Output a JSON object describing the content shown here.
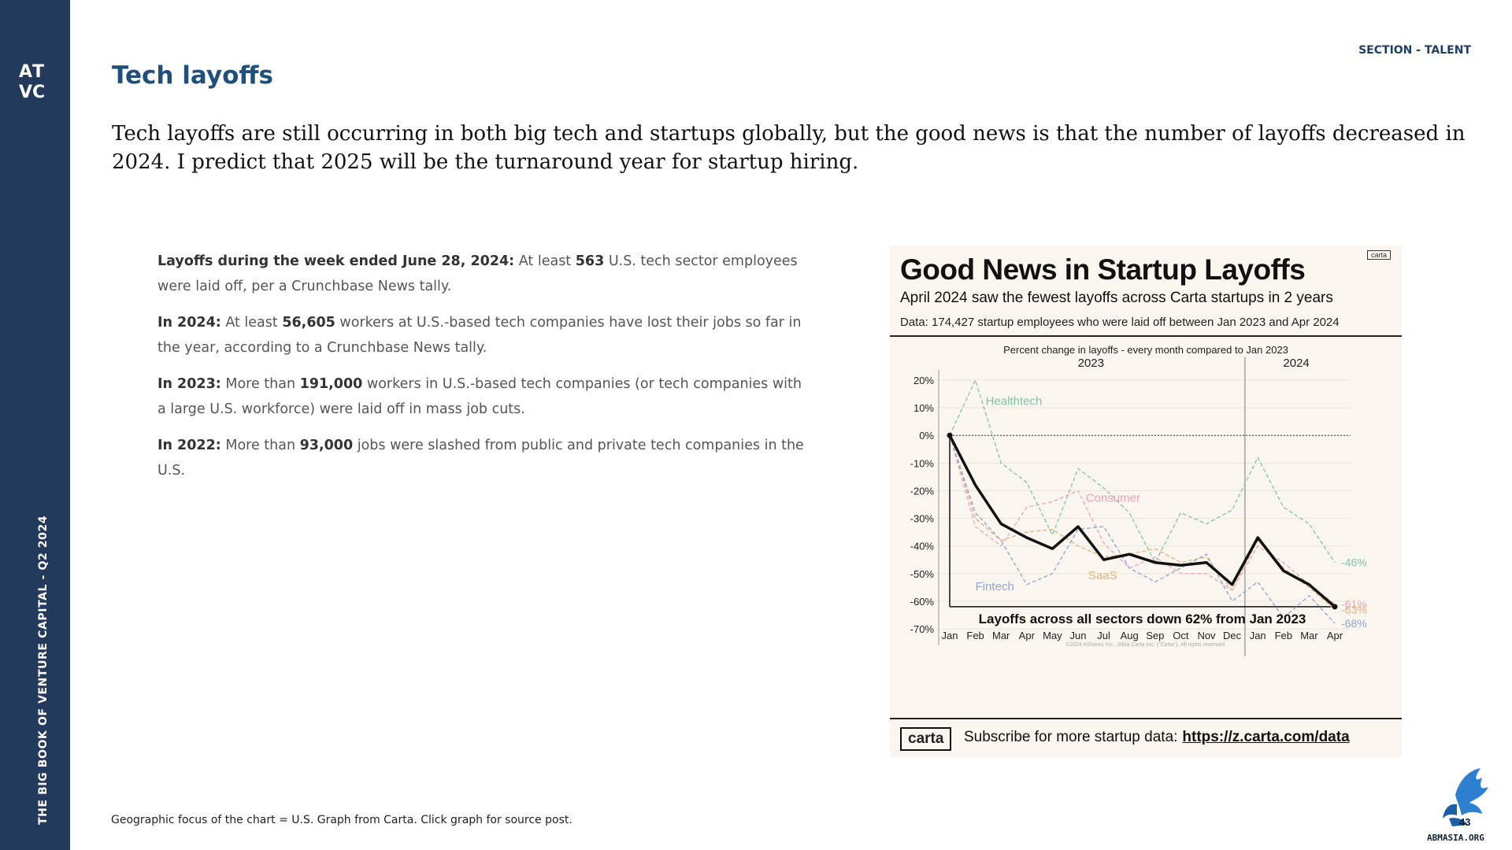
{
  "sidebar": {
    "logo_text": "ATVC",
    "vertical_label": "THE BIG BOOK OF VENTURE CAPITAL - Q2 2024"
  },
  "header": {
    "section": "SECTION - TALENT",
    "title": "Tech layoffs"
  },
  "intro": "Tech layoffs are still occurring in both big tech and startups globally, but the good news is that the number of layoffs decreased in 2024. I predict that 2025 will be the turnaround year for startup hiring.",
  "stats": [
    {
      "lead": "Layoffs during the week ended June 28, 2024:",
      "t1": " At least ",
      "num": "563",
      "t2": " U.S. tech sector employees were laid off, per a Crunchbase News tally."
    },
    {
      "lead": "In 2024:",
      "t1": " At least ",
      "num": "56,605",
      "t2": " workers at U.S.-based tech companies have lost their jobs so far in the year, according to a Crunchbase News tally."
    },
    {
      "lead": "In 2023:",
      "t1": " More than ",
      "num": "191,000",
      "t2": " workers in U.S.-based tech companies (or tech companies with a large U.S. workforce) were laid off in mass job cuts."
    },
    {
      "lead": "In 2022:",
      "t1": " More than ",
      "num": "93,000",
      "t2": " jobs were slashed from public and private tech companies in the U.S."
    }
  ],
  "card": {
    "title": "Good News in Startup Layoffs",
    "subtitle": "April 2024 saw the fewest layoffs across Carta startups in 2 years",
    "data_note": "Data: 174,427 startup employees who were laid off between Jan 2023 and Apr 2024",
    "badge": "carta",
    "footer_brand": "carta",
    "footer_text": "Subscribe for more startup data:",
    "footer_link": "https://z.carta.com/data"
  },
  "chart_data": {
    "type": "line",
    "title": "Percent change in layoffs - every month compared to Jan 2023",
    "annotation": "Layoffs across all sectors down 62% from Jan 2023",
    "copyright": "©2024 eShares Inc., d/b/a Carta Inc. (\"Carta\"). All rights reserved.",
    "x": [
      "Jan",
      "Feb",
      "Mar",
      "Apr",
      "May",
      "Jun",
      "Jul",
      "Aug",
      "Sep",
      "Oct",
      "Nov",
      "Dec",
      "Jan",
      "Feb",
      "Mar",
      "Apr"
    ],
    "year_labels": [
      {
        "label": "2023",
        "index": 5.5
      },
      {
        "label": "2024",
        "index": 13.5
      }
    ],
    "year_divider_index": 11.5,
    "yticks": [
      20,
      10,
      0,
      -10,
      -20,
      -30,
      -40,
      -50,
      -60,
      -70
    ],
    "ytick_labels": [
      "20%",
      "10%",
      "0%",
      "-10%",
      "-20%",
      "-30%",
      "-40%",
      "-50%",
      "-60%",
      "-70%"
    ],
    "ylim": [
      -72,
      22
    ],
    "series": [
      {
        "name": "Healthtech",
        "color": "#7fc3a8",
        "label_index": 1.4,
        "label_value": 11,
        "end_label": "-46%",
        "end_value": -46,
        "values": [
          0,
          20,
          -10,
          -17,
          -36,
          -12,
          -19,
          -28,
          -46,
          -28,
          -32,
          -27,
          -8,
          -26,
          -32,
          -46
        ]
      },
      {
        "name": "Consumer",
        "color": "#e8a3c1",
        "label_index": 5.3,
        "label_value": -24,
        "end_label": "-61%",
        "end_value": -61,
        "values": [
          0,
          -33,
          -40,
          -26,
          -24,
          -20,
          -39,
          -48,
          -44,
          -50,
          -50,
          -56,
          -40,
          -46,
          -54,
          -61
        ]
      },
      {
        "name": "SaaS",
        "color": "#e8b07a",
        "label_index": 5.4,
        "label_value": -52,
        "end_label": "-63%",
        "end_value": -63,
        "values": [
          0,
          -30,
          -38,
          -35,
          -34,
          -40,
          -44,
          -43,
          -41,
          -46,
          -44,
          -56,
          -38,
          -48,
          -55,
          -63
        ]
      },
      {
        "name": "Fintech",
        "color": "#8aa6d0",
        "label_index": 1.0,
        "label_value": -56,
        "end_label": "-68%",
        "end_value": -68,
        "values": [
          0,
          -28,
          -38,
          -54,
          -50,
          -34,
          -33,
          -48,
          -53,
          -48,
          -43,
          -60,
          -53,
          -66,
          -58,
          -68
        ]
      },
      {
        "name": "All sectors",
        "color": "#111111",
        "values": [
          0,
          -18,
          -32,
          -37,
          -41,
          -33,
          -45,
          -43,
          -46,
          -47,
          -46,
          -54,
          -37,
          -49,
          -54,
          -62
        ]
      }
    ]
  },
  "footnote": "Geographic focus of the chart = U.S. Graph from Carta. Click graph for source post.",
  "page_number": "43",
  "site_url": "ABMASIA.ORG"
}
